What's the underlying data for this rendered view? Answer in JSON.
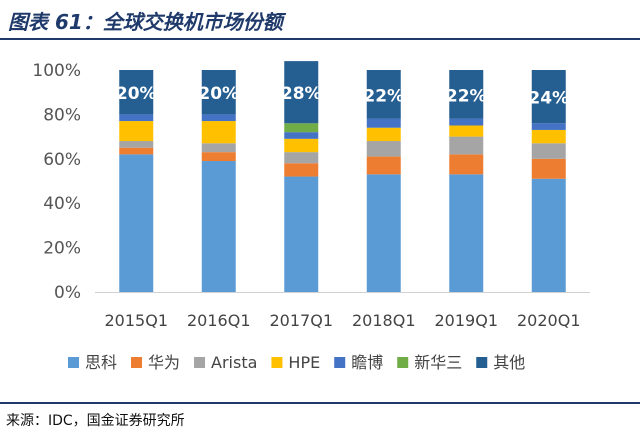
{
  "title": "图表 61：全球交换机市场份额",
  "source": "来源：IDC，国金证券研究所",
  "chart_data": {
    "type": "bar",
    "stacked": true,
    "percent": true,
    "categories": [
      "2015Q1",
      "2016Q1",
      "2017Q1",
      "2018Q1",
      "2019Q1",
      "2020Q1"
    ],
    "ylim": [
      0,
      100
    ],
    "yticks": [
      "0%",
      "20%",
      "40%",
      "60%",
      "80%",
      "100%"
    ],
    "grid": false,
    "legend_position": "bottom",
    "series": [
      {
        "name": "思科",
        "color": "#5b9bd5",
        "values": [
          62,
          59,
          52,
          53,
          53,
          51
        ]
      },
      {
        "name": "华为",
        "color": "#ed7d31",
        "values": [
          3,
          4,
          6,
          8,
          9,
          9
        ]
      },
      {
        "name": "Arista",
        "color": "#a5a5a5",
        "values": [
          3,
          4,
          5,
          7,
          8,
          7
        ]
      },
      {
        "name": "HPE",
        "color": "#ffc000",
        "values": [
          9,
          10,
          6,
          6,
          5,
          6
        ]
      },
      {
        "name": "瞻博",
        "color": "#4472c4",
        "values": [
          3,
          3,
          3,
          4,
          3,
          3
        ]
      },
      {
        "name": "新华三",
        "color": "#70ad47",
        "values": [
          0,
          0,
          0,
          0,
          0,
          0
        ]
      },
      {
        "name": "其他",
        "color": "#255e91",
        "values": [
          20,
          20,
          28,
          22,
          22,
          24
        ]
      }
    ],
    "extra_segments": [
      {
        "series": "新华三",
        "category": "2017Q1",
        "value": 4
      }
    ],
    "data_labels": {
      "series": "其他",
      "labels": [
        "20%",
        "20%",
        "28%",
        "22%",
        "22%",
        "24%"
      ]
    }
  }
}
